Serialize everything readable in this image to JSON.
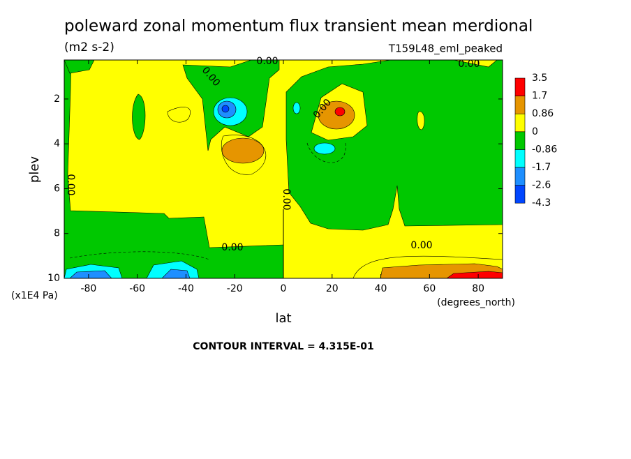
{
  "chart_data": {
    "type": "contour",
    "title": "poleward zonal momentum flux transient mean merdional",
    "units": "(m2 s-2)",
    "dataset": "T159L48_eml_peaked",
    "x_label": "lat",
    "x_units": "(degrees_north)",
    "y_label": "plev",
    "y_units": "(x1E4 Pa)",
    "xlim": [
      -90,
      90
    ],
    "xticks": [
      -80,
      -60,
      -40,
      -20,
      0,
      20,
      40,
      60,
      80
    ],
    "ylim": [
      10,
      0.26
    ],
    "yticks": [
      2,
      4,
      6,
      8,
      10
    ],
    "levels": [
      -4.3,
      -2.6,
      -1.7,
      -0.86,
      0,
      0.86,
      1.7,
      3.5
    ],
    "colors": [
      "#0046ff",
      "#1e8fff",
      "#00ffff",
      "#00c800",
      "#ffff00",
      "#e69500",
      "#ff0000"
    ],
    "contour_labels": [
      "0.00",
      "0.00",
      "0.00",
      "0.00",
      "0.00",
      "0.00",
      "0.00",
      "0.00"
    ],
    "footnote": "CONTOUR INTERVAL = 4.315E-01"
  }
}
